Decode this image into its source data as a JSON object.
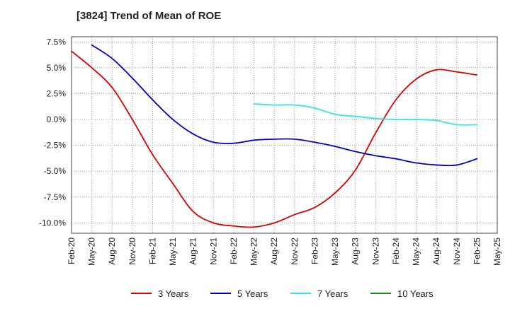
{
  "chart_data": {
    "type": "line",
    "title": "[3824]  Trend of Mean of ROE",
    "xlabel": "",
    "ylabel": "",
    "y_ticks": [
      "7.5%",
      "5.0%",
      "2.5%",
      "0.0%",
      "-2.5%",
      "-5.0%",
      "-7.5%",
      "-10.0%"
    ],
    "ylim": [
      -11.0,
      8.0
    ],
    "x_ticks": [
      "Feb-20",
      "May-20",
      "Aug-20",
      "Nov-20",
      "Feb-21",
      "May-21",
      "Aug-21",
      "Nov-21",
      "Feb-22",
      "May-22",
      "Aug-22",
      "Nov-22",
      "Feb-23",
      "May-23",
      "Aug-23",
      "Nov-23",
      "Feb-24",
      "May-24",
      "Aug-24",
      "Nov-24",
      "Feb-25",
      "May-25"
    ],
    "grid": true,
    "legend_position": "bottom",
    "series": [
      {
        "name": "3 Years",
        "color": "#dd0000",
        "points": [
          [
            "Feb-20",
            6.6
          ],
          [
            "May-20",
            5.0
          ],
          [
            "Aug-20",
            3.1
          ],
          [
            "Nov-20",
            0.0
          ],
          [
            "Feb-21",
            -3.4
          ],
          [
            "May-21",
            -6.2
          ],
          [
            "Aug-21",
            -8.9
          ],
          [
            "Nov-21",
            -10.0
          ],
          [
            "Feb-22",
            -10.3
          ],
          [
            "May-22",
            -10.4
          ],
          [
            "Aug-22",
            -10.0
          ],
          [
            "Nov-22",
            -9.2
          ],
          [
            "Feb-23",
            -8.5
          ],
          [
            "May-23",
            -7.1
          ],
          [
            "Aug-23",
            -4.9
          ],
          [
            "Nov-23",
            -1.3
          ],
          [
            "Feb-24",
            1.9
          ],
          [
            "May-24",
            3.9
          ],
          [
            "Aug-24",
            4.8
          ],
          [
            "Nov-24",
            4.6
          ],
          [
            "Feb-25",
            4.3
          ]
        ]
      },
      {
        "name": "5 Years",
        "color": "#0000cc",
        "points": [
          [
            "May-20",
            7.2
          ],
          [
            "Aug-20",
            5.9
          ],
          [
            "Nov-20",
            4.0
          ],
          [
            "Feb-21",
            1.9
          ],
          [
            "May-21",
            0.0
          ],
          [
            "Aug-21",
            -1.4
          ],
          [
            "Nov-21",
            -2.2
          ],
          [
            "Feb-22",
            -2.3
          ],
          [
            "May-22",
            -2.0
          ],
          [
            "Aug-22",
            -1.9
          ],
          [
            "Nov-22",
            -1.9
          ],
          [
            "Feb-23",
            -2.2
          ],
          [
            "May-23",
            -2.6
          ],
          [
            "Aug-23",
            -3.1
          ],
          [
            "Nov-23",
            -3.5
          ],
          [
            "Feb-24",
            -3.8
          ],
          [
            "May-24",
            -4.2
          ],
          [
            "Aug-24",
            -4.4
          ],
          [
            "Nov-24",
            -4.4
          ],
          [
            "Feb-25",
            -3.8
          ]
        ]
      },
      {
        "name": "7 Years",
        "color": "#33e6e6",
        "points": [
          [
            "May-22",
            1.5
          ],
          [
            "Aug-22",
            1.4
          ],
          [
            "Nov-22",
            1.4
          ],
          [
            "Feb-23",
            1.1
          ],
          [
            "May-23",
            0.5
          ],
          [
            "Aug-23",
            0.3
          ],
          [
            "Nov-23",
            0.1
          ],
          [
            "Feb-24",
            0.0
          ],
          [
            "May-24",
            0.0
          ],
          [
            "Aug-24",
            -0.1
          ],
          [
            "Nov-24",
            -0.5
          ],
          [
            "Feb-25",
            -0.5
          ]
        ]
      },
      {
        "name": "10 Years",
        "color": "#1a8a1a",
        "points": []
      }
    ]
  }
}
